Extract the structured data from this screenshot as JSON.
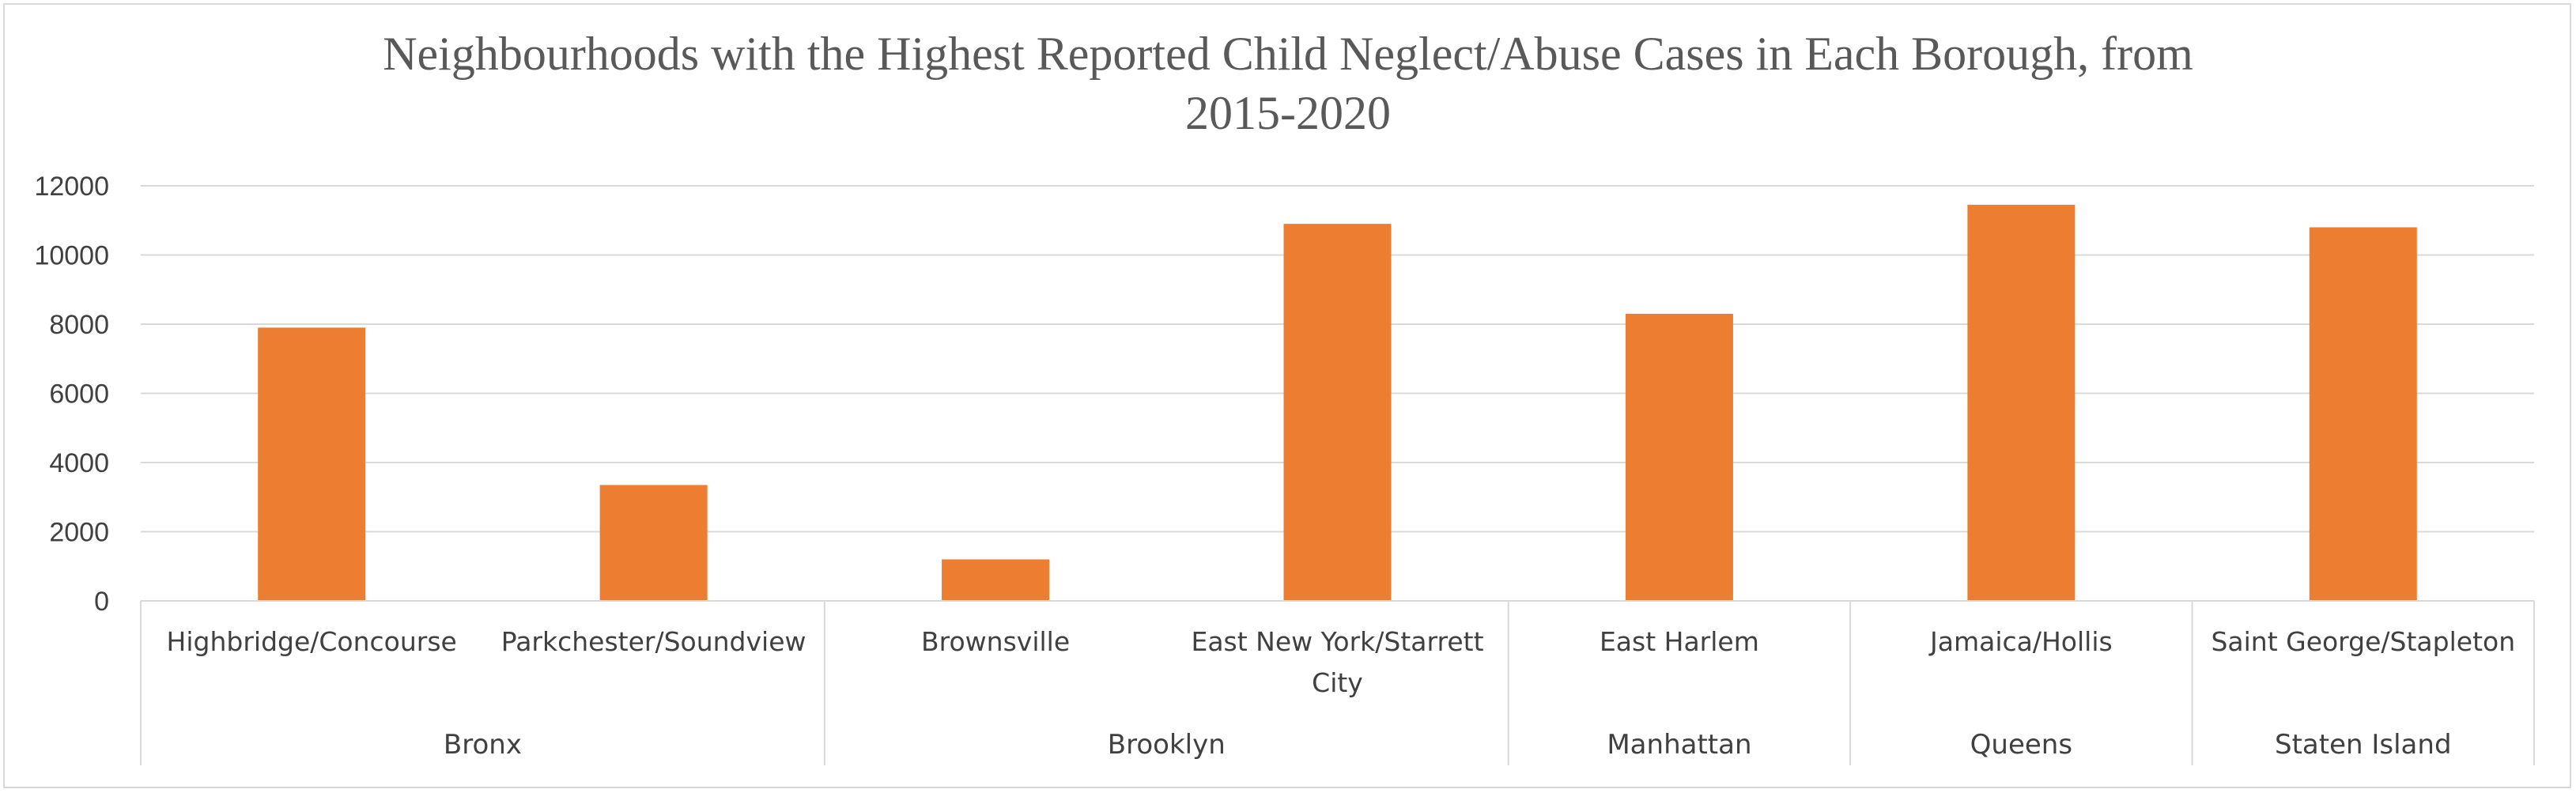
{
  "chart_data": {
    "type": "bar",
    "title": "Neighbourhoods with the Highest Reported Child Neglect/Abuse Cases in Each Borough, from 2015-2020",
    "title_lines": [
      "Neighbourhoods with the Highest Reported Child Neglect/Abuse Cases in Each Borough, from",
      "2015-2020"
    ],
    "xlabel": "",
    "ylabel": "",
    "ylim": [
      0,
      12000
    ],
    "yticks": [
      "0",
      "2000",
      "4000",
      "6000",
      "8000",
      "10000",
      "12000"
    ],
    "grid": true,
    "legend": "none",
    "bar_color": "#ED7D31",
    "categories": [
      "Highbridge/Concourse",
      "Parkchester/Soundview",
      "Brownsville",
      "East New York/Starrett City",
      "East Harlem",
      "Jamaica/Hollis",
      "Saint George/Stapleton"
    ],
    "category_lines": [
      [
        "Highbridge/Concourse"
      ],
      [
        "Parkchester/Soundview"
      ],
      [
        "Brownsville"
      ],
      [
        "East New York/Starrett",
        "City"
      ],
      [
        "East Harlem"
      ],
      [
        "Jamaica/Hollis"
      ],
      [
        "Saint George/Stapleton"
      ]
    ],
    "groups": [
      {
        "name": "Bronx",
        "categories": [
          "Highbridge/Concourse",
          "Parkchester/Soundview"
        ]
      },
      {
        "name": "Brooklyn",
        "categories": [
          "Brownsville",
          "East New York/Starrett City"
        ]
      },
      {
        "name": "Manhattan",
        "categories": [
          "East Harlem"
        ]
      },
      {
        "name": "Queens",
        "categories": [
          "Jamaica/Hollis"
        ]
      },
      {
        "name": "Staten Island",
        "categories": [
          "Saint George/Stapleton"
        ]
      }
    ],
    "values": [
      7900,
      3350,
      1200,
      10900,
      8300,
      11450,
      10800
    ]
  }
}
